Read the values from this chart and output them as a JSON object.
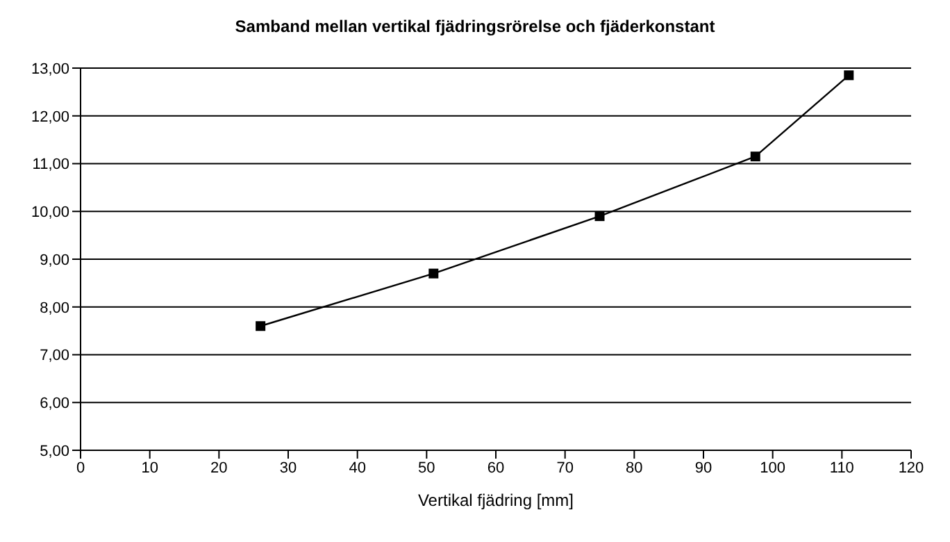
{
  "chart_data": {
    "type": "line",
    "title": "Samband mellan vertikal fjädringsrörelse och fjäderkonstant",
    "xlabel": "Vertikal fjädring [mm]",
    "x": [
      26,
      51,
      75,
      97.5,
      111
    ],
    "series": [
      {
        "color": "#000000",
        "values": [
          7.6,
          8.7,
          9.9,
          11.15,
          12.85
        ]
      }
    ],
    "xlim": [
      0,
      120
    ],
    "xticks": [
      0,
      10,
      20,
      30,
      40,
      50,
      60,
      70,
      80,
      90,
      100,
      110,
      120
    ],
    "ylim": [
      5,
      13
    ],
    "yticks": [
      {
        "value": 5,
        "label": "5,00"
      },
      {
        "value": 6,
        "label": "6,00"
      },
      {
        "value": 7,
        "label": "7,00"
      },
      {
        "value": 8,
        "label": "8,00"
      },
      {
        "value": 9,
        "label": "9,00"
      },
      {
        "value": 10,
        "label": "10,00"
      },
      {
        "value": 11,
        "label": "11,00"
      },
      {
        "value": 12,
        "label": "12,00"
      },
      {
        "value": 13,
        "label": "13,00"
      }
    ],
    "grid": "y",
    "marker": "square",
    "line_style": "solid"
  }
}
